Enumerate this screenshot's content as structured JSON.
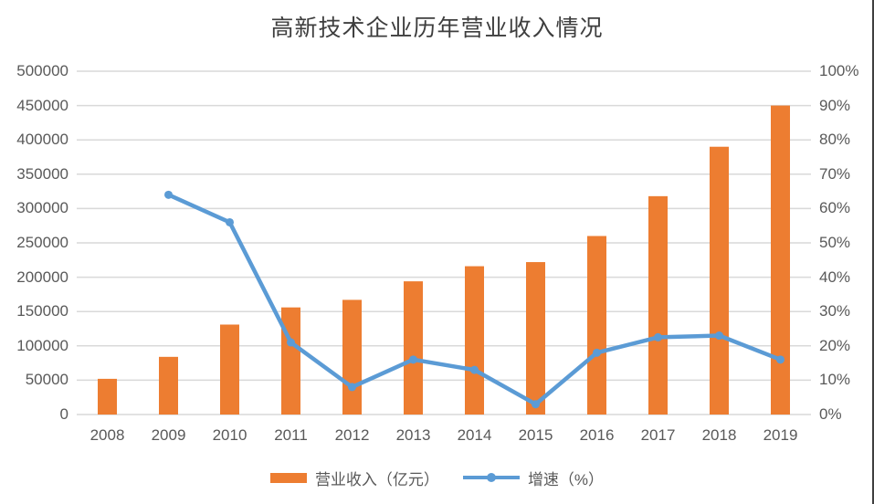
{
  "title": "高新技术企业历年营业收入情况",
  "legend": {
    "bar": "营业收入（亿元）",
    "line": "增速（%）"
  },
  "colors": {
    "bar": "#ED7D31",
    "line": "#5B9BD5",
    "grid": "#D9D9D9",
    "axis_text": "#595959",
    "title_text": "#3E3E3E"
  },
  "chart_data": {
    "type": "bar",
    "subtype": "bar-line-combo",
    "title": "高新技术企业历年营业收入情况",
    "categories": [
      "2008",
      "2009",
      "2010",
      "2011",
      "2012",
      "2013",
      "2014",
      "2015",
      "2016",
      "2017",
      "2018",
      "2019"
    ],
    "series": [
      {
        "name": "营业收入（亿元）",
        "type": "bar",
        "axis": "left",
        "values": [
          52000,
          84000,
          131000,
          156000,
          167000,
          194000,
          216000,
          222000,
          260000,
          318000,
          390000,
          450000
        ]
      },
      {
        "name": "增速（%）",
        "type": "line",
        "axis": "right",
        "values": [
          null,
          64,
          56,
          21,
          8,
          16,
          13,
          3,
          18,
          22.5,
          23,
          16
        ]
      }
    ],
    "left_axis": {
      "min": 0,
      "max": 500000,
      "step": 50000,
      "tick_labels": [
        "0",
        "50000",
        "100000",
        "150000",
        "200000",
        "250000",
        "300000",
        "350000",
        "400000",
        "450000",
        "500000"
      ]
    },
    "right_axis": {
      "min": 0,
      "max": 100,
      "step": 10,
      "tick_labels": [
        "0%",
        "10%",
        "20%",
        "30%",
        "40%",
        "50%",
        "60%",
        "70%",
        "80%",
        "90%",
        "100%"
      ]
    },
    "grid": true,
    "legend_position": "bottom"
  }
}
